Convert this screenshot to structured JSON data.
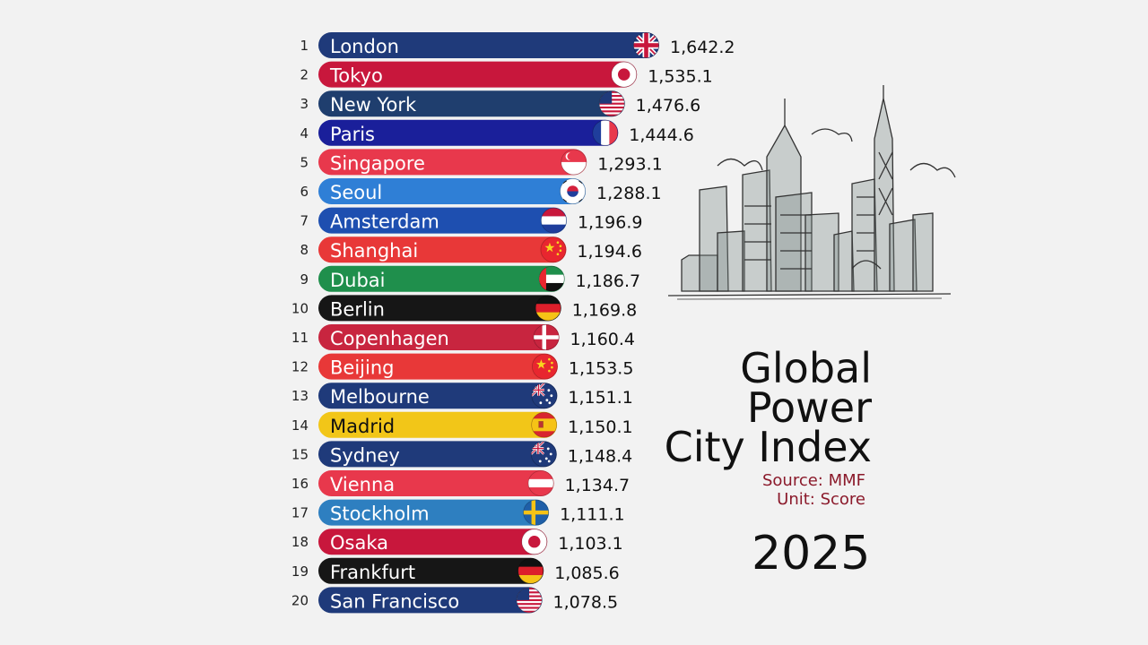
{
  "chart_data": {
    "type": "bar",
    "orientation": "horizontal",
    "title": "Global Power City Index",
    "title_lines": [
      "Global",
      "Power",
      "City Index"
    ],
    "source": "Source: MMF",
    "unit": "Unit: Score",
    "year": "2025",
    "categories": [
      "London",
      "Tokyo",
      "New York",
      "Paris",
      "Singapore",
      "Seoul",
      "Amsterdam",
      "Shanghai",
      "Dubai",
      "Berlin",
      "Copenhagen",
      "Beijing",
      "Melbourne",
      "Madrid",
      "Sydney",
      "Vienna",
      "Stockholm",
      "Osaka",
      "Frankfurt",
      "San Francisco"
    ],
    "ranks": [
      "1",
      "2",
      "3",
      "4",
      "5",
      "6",
      "7",
      "8",
      "9",
      "10",
      "11",
      "12",
      "13",
      "14",
      "15",
      "16",
      "17",
      "18",
      "19",
      "20"
    ],
    "values": [
      1642.2,
      1535.1,
      1476.6,
      1444.6,
      1293.1,
      1288.1,
      1196.9,
      1194.6,
      1186.7,
      1169.8,
      1160.4,
      1153.5,
      1151.1,
      1150.1,
      1148.4,
      1134.7,
      1111.1,
      1103.1,
      1085.6,
      1078.5
    ],
    "value_labels": [
      "1,642.2",
      "1,535.1",
      "1,476.6",
      "1,444.6",
      "1,293.1",
      "1,288.1",
      "1,196.9",
      "1,194.6",
      "1,186.7",
      "1,169.8",
      "1,160.4",
      "1,153.5",
      "1,151.1",
      "1,150.1",
      "1,148.4",
      "1,134.7",
      "1,111.1",
      "1,103.1",
      "1,085.6",
      "1,078.5"
    ],
    "bar_colors": [
      "#1f3a7a",
      "#c8173c",
      "#1f3e6e",
      "#1a1f9a",
      "#e8384c",
      "#2f7fd6",
      "#1e4fb0",
      "#e83838",
      "#1f8f4c",
      "#161616",
      "#c8253f",
      "#e83838",
      "#1f3a7a",
      "#f2c618",
      "#1f3a7a",
      "#e8384c",
      "#2e7fc0",
      "#c8173c",
      "#161616",
      "#1f3a7a"
    ],
    "label_colors": [
      "#ffffff",
      "#ffffff",
      "#ffffff",
      "#ffffff",
      "#ffffff",
      "#ffffff",
      "#ffffff",
      "#ffffff",
      "#ffffff",
      "#ffffff",
      "#ffffff",
      "#ffffff",
      "#ffffff",
      "#111111",
      "#ffffff",
      "#ffffff",
      "#ffffff",
      "#ffffff",
      "#ffffff",
      "#ffffff"
    ],
    "flag_icons": [
      "uk-flag-icon",
      "japan-flag-icon",
      "usa-flag-icon",
      "france-flag-icon",
      "singapore-flag-icon",
      "south-korea-flag-icon",
      "netherlands-flag-icon",
      "china-flag-icon",
      "uae-flag-icon",
      "germany-flag-icon",
      "denmark-flag-icon",
      "china-flag-icon",
      "australia-flag-icon",
      "spain-flag-icon",
      "australia-flag-icon",
      "austria-flag-icon",
      "sweden-flag-icon",
      "japan-flag-icon",
      "germany-flag-icon",
      "usa-flag-icon"
    ],
    "illustration": "city-skyline-sketch-icon"
  }
}
